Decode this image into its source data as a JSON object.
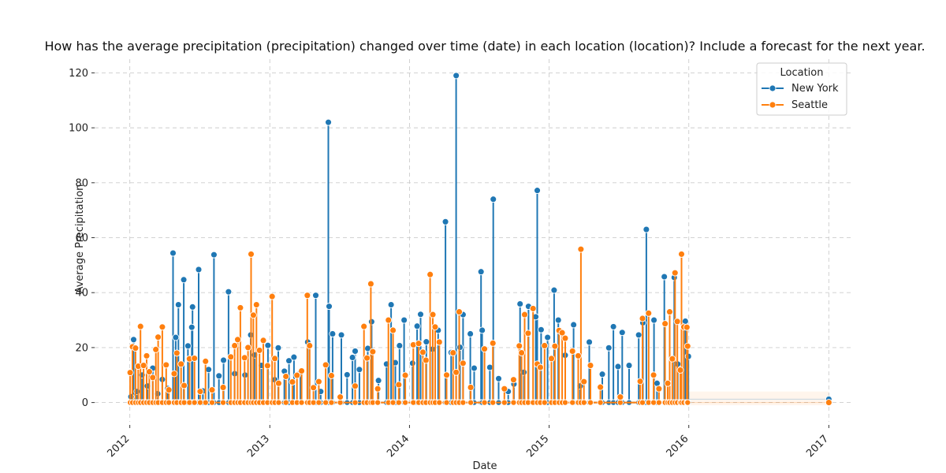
{
  "chart_data": {
    "type": "line",
    "title": "How has the average precipitation (precipitation) changed over time (date) in each location (location)?  Include a forecast for the next year.",
    "xlabel": "Date",
    "ylabel": "Average Precipitation",
    "xlim": [
      "2011-10-01",
      "2017-03-01"
    ],
    "ylim": [
      -7,
      125
    ],
    "x_ticks": [
      "2012-01-01",
      "2013-01-01",
      "2014-01-01",
      "2015-01-01",
      "2016-01-01",
      "2017-01-01"
    ],
    "x_tick_labels": [
      "2012",
      "2013",
      "2014",
      "2015",
      "2016",
      "2017"
    ],
    "y_ticks": [
      0,
      20,
      40,
      60,
      80,
      100,
      120
    ],
    "grid": true,
    "legend": {
      "title": "Location",
      "placement": "top-right"
    },
    "series": [
      {
        "name": "New York",
        "color": "#1f77b4",
        "points": [
          [
            "2012-01-04",
            2.1
          ],
          [
            "2012-01-11",
            22.9
          ],
          [
            "2012-01-20",
            4.0
          ],
          [
            "2012-02-02",
            10.0
          ],
          [
            "2012-02-16",
            6.0
          ],
          [
            "2012-03-01",
            12.5
          ],
          [
            "2012-03-14",
            3.2
          ],
          [
            "2012-03-26",
            8.4
          ],
          [
            "2012-04-09",
            5.1
          ],
          [
            "2012-04-23",
            54.4
          ],
          [
            "2012-04-30",
            23.7
          ],
          [
            "2012-05-07",
            35.6
          ],
          [
            "2012-05-21",
            44.7
          ],
          [
            "2012-06-01",
            20.6
          ],
          [
            "2012-06-11",
            27.4
          ],
          [
            "2012-06-13",
            34.8
          ],
          [
            "2012-06-29",
            48.4
          ],
          [
            "2012-07-10",
            4.2
          ],
          [
            "2012-07-25",
            12.0
          ],
          [
            "2012-08-08",
            53.8
          ],
          [
            "2012-08-21",
            9.7
          ],
          [
            "2012-09-02",
            15.4
          ],
          [
            "2012-09-15",
            40.3
          ],
          [
            "2012-10-01",
            10.5
          ],
          [
            "2012-10-28",
            10.0
          ],
          [
            "2012-11-12",
            24.6
          ],
          [
            "2012-11-22",
            17.3
          ],
          [
            "2012-12-10",
            13.5
          ],
          [
            "2012-12-27",
            20.8
          ],
          [
            "2013-01-14",
            8.3
          ],
          [
            "2013-01-23",
            19.9
          ],
          [
            "2013-02-08",
            11.4
          ],
          [
            "2013-02-20",
            15.2
          ],
          [
            "2013-03-05",
            16.5
          ],
          [
            "2013-03-22",
            10.9
          ],
          [
            "2013-04-10",
            22.0
          ],
          [
            "2013-05-01",
            39.0
          ],
          [
            "2013-05-14",
            4.0
          ],
          [
            "2013-06-03",
            102.0
          ],
          [
            "2013-06-05",
            35.0
          ],
          [
            "2013-06-14",
            25.0
          ],
          [
            "2013-07-07",
            24.6
          ],
          [
            "2013-07-22",
            10.1
          ],
          [
            "2013-08-05",
            16.4
          ],
          [
            "2013-08-12",
            18.7
          ],
          [
            "2013-08-23",
            12.0
          ],
          [
            "2013-09-14",
            19.7
          ],
          [
            "2013-09-24",
            29.4
          ],
          [
            "2013-10-12",
            8.0
          ],
          [
            "2013-11-02",
            14.0
          ],
          [
            "2013-11-14",
            35.6
          ],
          [
            "2013-11-25",
            14.5
          ],
          [
            "2013-12-06",
            20.7
          ],
          [
            "2013-12-18",
            30.0
          ],
          [
            "2014-01-09",
            14.3
          ],
          [
            "2014-01-21",
            27.8
          ],
          [
            "2014-01-30",
            32.1
          ],
          [
            "2014-02-14",
            22.1
          ],
          [
            "2014-03-02",
            19.4
          ],
          [
            "2014-03-17",
            26.3
          ],
          [
            "2014-04-05",
            65.8
          ],
          [
            "2014-04-20",
            18.2
          ],
          [
            "2014-05-03",
            119.0
          ],
          [
            "2014-05-13",
            20.1
          ],
          [
            "2014-05-21",
            32.0
          ],
          [
            "2014-06-09",
            25.0
          ],
          [
            "2014-06-19",
            12.5
          ],
          [
            "2014-07-07",
            47.6
          ],
          [
            "2014-07-10",
            26.3
          ],
          [
            "2014-07-30",
            12.8
          ],
          [
            "2014-08-08",
            74.0
          ],
          [
            "2014-08-22",
            8.7
          ],
          [
            "2014-09-16",
            4.0
          ],
          [
            "2014-10-01",
            6.7
          ],
          [
            "2014-10-17",
            35.9
          ],
          [
            "2014-10-27",
            11.0
          ],
          [
            "2014-11-08",
            35.0
          ],
          [
            "2014-11-27",
            31.2
          ],
          [
            "2014-12-01",
            77.2
          ],
          [
            "2014-12-11",
            26.5
          ],
          [
            "2014-12-28",
            23.7
          ],
          [
            "2015-01-14",
            40.9
          ],
          [
            "2015-01-25",
            30.0
          ],
          [
            "2015-02-12",
            17.2
          ],
          [
            "2015-03-06",
            28.3
          ],
          [
            "2015-03-23",
            6.0
          ],
          [
            "2015-04-16",
            22.0
          ],
          [
            "2015-05-20",
            10.3
          ],
          [
            "2015-06-06",
            19.9
          ],
          [
            "2015-06-18",
            27.6
          ],
          [
            "2015-06-30",
            13.1
          ],
          [
            "2015-07-11",
            25.5
          ],
          [
            "2015-07-29",
            13.5
          ],
          [
            "2015-08-23",
            24.6
          ],
          [
            "2015-09-03",
            29.0
          ],
          [
            "2015-09-12",
            63.0
          ],
          [
            "2015-10-02",
            30.0
          ],
          [
            "2015-10-10",
            7.0
          ],
          [
            "2015-10-29",
            45.8
          ],
          [
            "2015-11-24",
            45.5
          ],
          [
            "2015-12-03",
            14.0
          ],
          [
            "2015-12-23",
            29.6
          ],
          [
            "2015-12-31",
            16.8
          ],
          [
            "2017-01-01",
            1.2
          ]
        ]
      },
      {
        "name": "Seattle",
        "color": "#ff7f0e",
        "points": [
          [
            "2012-01-02",
            10.9
          ],
          [
            "2012-01-08",
            20.3
          ],
          [
            "2012-01-16",
            19.8
          ],
          [
            "2012-01-23",
            13.2
          ],
          [
            "2012-01-29",
            27.7
          ],
          [
            "2012-02-06",
            13.5
          ],
          [
            "2012-02-14",
            17.0
          ],
          [
            "2012-02-21",
            11.2
          ],
          [
            "2012-03-01",
            9.1
          ],
          [
            "2012-03-09",
            19.3
          ],
          [
            "2012-03-15",
            23.8
          ],
          [
            "2012-03-26",
            27.5
          ],
          [
            "2012-04-05",
            13.7
          ],
          [
            "2012-04-12",
            4.6
          ],
          [
            "2012-04-26",
            10.5
          ],
          [
            "2012-05-03",
            18.0
          ],
          [
            "2012-05-14",
            14.0
          ],
          [
            "2012-05-22",
            6.2
          ],
          [
            "2012-06-05",
            15.9
          ],
          [
            "2012-06-18",
            16.1
          ],
          [
            "2012-07-03",
            4.0
          ],
          [
            "2012-07-17",
            15.0
          ],
          [
            "2012-08-03",
            4.6
          ],
          [
            "2012-09-01",
            5.5
          ],
          [
            "2012-09-21",
            16.6
          ],
          [
            "2012-10-01",
            20.7
          ],
          [
            "2012-10-09",
            22.9
          ],
          [
            "2012-10-16",
            34.5
          ],
          [
            "2012-10-27",
            16.3
          ],
          [
            "2012-11-05",
            20.0
          ],
          [
            "2012-11-13",
            54.0
          ],
          [
            "2012-11-19",
            31.8
          ],
          [
            "2012-11-27",
            35.6
          ],
          [
            "2012-12-05",
            19.0
          ],
          [
            "2012-12-15",
            22.6
          ],
          [
            "2012-12-26",
            13.4
          ],
          [
            "2013-01-07",
            38.6
          ],
          [
            "2013-01-14",
            16.0
          ],
          [
            "2013-01-24",
            7.0
          ],
          [
            "2013-02-12",
            9.5
          ],
          [
            "2013-03-01",
            7.5
          ],
          [
            "2013-03-13",
            9.9
          ],
          [
            "2013-03-25",
            11.5
          ],
          [
            "2013-04-09",
            39.0
          ],
          [
            "2013-04-15",
            20.7
          ],
          [
            "2013-04-25",
            5.4
          ],
          [
            "2013-05-09",
            7.6
          ],
          [
            "2013-05-27",
            13.7
          ],
          [
            "2013-06-11",
            9.8
          ],
          [
            "2013-07-04",
            2.0
          ],
          [
            "2013-08-12",
            6.0
          ],
          [
            "2013-09-04",
            27.7
          ],
          [
            "2013-09-12",
            16.2
          ],
          [
            "2013-09-22",
            43.2
          ],
          [
            "2013-09-27",
            18.5
          ],
          [
            "2013-10-10",
            5.0
          ],
          [
            "2013-11-07",
            30.0
          ],
          [
            "2013-11-19",
            26.3
          ],
          [
            "2013-12-04",
            6.5
          ],
          [
            "2013-12-21",
            9.9
          ],
          [
            "2014-01-11",
            21.0
          ],
          [
            "2014-01-25",
            21.5
          ],
          [
            "2014-02-05",
            18.3
          ],
          [
            "2014-02-13",
            15.4
          ],
          [
            "2014-02-24",
            46.6
          ],
          [
            "2014-03-03",
            32.0
          ],
          [
            "2014-03-09",
            27.5
          ],
          [
            "2014-03-20",
            22.0
          ],
          [
            "2014-04-08",
            10.0
          ],
          [
            "2014-04-25",
            18.1
          ],
          [
            "2014-05-03",
            11.0
          ],
          [
            "2014-05-11",
            33.0
          ],
          [
            "2014-05-21",
            14.3
          ],
          [
            "2014-06-10",
            5.5
          ],
          [
            "2014-07-16",
            19.5
          ],
          [
            "2014-08-07",
            21.6
          ],
          [
            "2014-09-06",
            5.0
          ],
          [
            "2014-09-30",
            8.3
          ],
          [
            "2014-10-15",
            20.6
          ],
          [
            "2014-10-21",
            18.1
          ],
          [
            "2014-10-29",
            32.0
          ],
          [
            "2014-11-07",
            25.2
          ],
          [
            "2014-11-20",
            34.2
          ],
          [
            "2014-12-01",
            14.0
          ],
          [
            "2014-12-09",
            12.8
          ],
          [
            "2014-12-20",
            20.7
          ],
          [
            "2015-01-07",
            16.0
          ],
          [
            "2015-01-16",
            20.5
          ],
          [
            "2015-01-27",
            26.2
          ],
          [
            "2015-02-04",
            25.4
          ],
          [
            "2015-02-12",
            23.4
          ],
          [
            "2015-03-03",
            18.7
          ],
          [
            "2015-03-18",
            17.0
          ],
          [
            "2015-03-25",
            55.8
          ],
          [
            "2015-04-02",
            7.6
          ],
          [
            "2015-04-19",
            13.5
          ],
          [
            "2015-05-15",
            5.6
          ],
          [
            "2015-07-06",
            2.0
          ],
          [
            "2015-08-27",
            7.7
          ],
          [
            "2015-09-02",
            30.6
          ],
          [
            "2015-09-18",
            32.5
          ],
          [
            "2015-10-01",
            10.0
          ],
          [
            "2015-10-15",
            5.0
          ],
          [
            "2015-10-31",
            28.7
          ],
          [
            "2015-11-07",
            7.0
          ],
          [
            "2015-11-12",
            33.0
          ],
          [
            "2015-11-19",
            15.9
          ],
          [
            "2015-11-26",
            47.2
          ],
          [
            "2015-12-02",
            29.5
          ],
          [
            "2015-12-10",
            11.8
          ],
          [
            "2015-12-13",
            54.0
          ],
          [
            "2015-12-19",
            27.5
          ],
          [
            "2015-12-27",
            27.4
          ],
          [
            "2015-12-29",
            20.5
          ],
          [
            "2017-01-01",
            0.0
          ]
        ]
      }
    ]
  }
}
